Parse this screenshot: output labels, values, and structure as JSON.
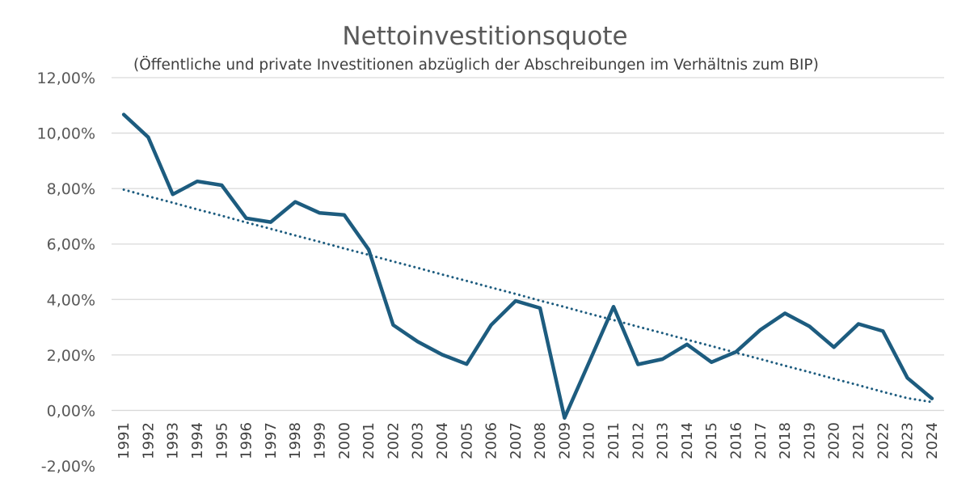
{
  "chart_data": {
    "type": "line",
    "title": "Nettoinvestitionsquote",
    "subtitle": "(Öffentliche und private Investitionen abzüglich der Abschreibungen im Verhältnis zum BIP)",
    "xlabel": "",
    "ylabel": "",
    "ylim": [
      -2,
      12
    ],
    "yticks": [
      12,
      10,
      8,
      6,
      4,
      2,
      0,
      -2
    ],
    "ytick_labels": [
      "12,00%",
      "10,00%",
      "8,00%",
      "6,00%",
      "4,00%",
      "2,00%",
      "0,00%",
      "-2,00%"
    ],
    "grid": true,
    "legend": "none",
    "categories": [
      "1991",
      "1992",
      "1993",
      "1994",
      "1995",
      "1996",
      "1997",
      "1998",
      "1999",
      "2000",
      "2001",
      "2002",
      "2003",
      "2004",
      "2005",
      "2006",
      "2007",
      "2008",
      "2009",
      "2010",
      "2011",
      "2012",
      "2013",
      "2014",
      "2015",
      "2016",
      "2017",
      "2018",
      "2019",
      "2020",
      "2021",
      "2022",
      "2023",
      "2024"
    ],
    "series": [
      {
        "values": [
          10.67,
          9.85,
          7.79,
          8.26,
          8.12,
          6.93,
          6.79,
          7.52,
          7.12,
          7.05,
          5.8,
          3.08,
          2.48,
          2.01,
          1.67,
          3.08,
          3.95,
          3.69,
          -0.27,
          1.73,
          3.74,
          1.66,
          1.85,
          2.38,
          1.74,
          2.11,
          2.91,
          3.5,
          3.03,
          2.28,
          3.12,
          2.86,
          1.17,
          0.43
        ],
        "color": "#1d5c7f",
        "style": "solid"
      },
      {
        "values": [
          7.96,
          7.72,
          7.49,
          7.25,
          7.02,
          6.78,
          6.55,
          6.31,
          6.08,
          5.84,
          5.61,
          5.37,
          5.14,
          4.9,
          4.67,
          4.43,
          4.2,
          3.96,
          3.73,
          3.49,
          3.26,
          3.02,
          2.79,
          2.55,
          2.32,
          2.08,
          1.85,
          1.61,
          1.38,
          1.14,
          0.91,
          0.67,
          0.44,
          0.3
        ],
        "color": "#1d5c7f",
        "style": "dotted",
        "kind": "linear trendline"
      }
    ]
  }
}
